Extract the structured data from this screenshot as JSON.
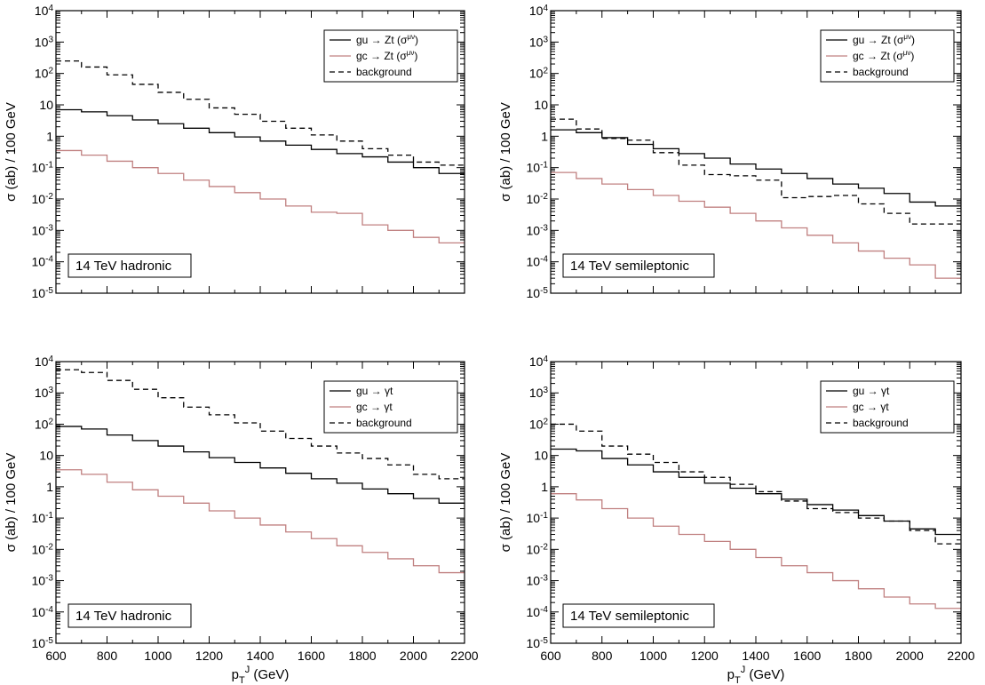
{
  "chart_data": [
    {
      "type": "line",
      "step": true,
      "ylabel": "σ (ab) / 100 GeV",
      "xlabel": "",
      "xlim": [
        600,
        2200
      ],
      "ylim": [
        1e-05,
        10000.0
      ],
      "yscale": "log",
      "x_ticks": [
        "600",
        "800",
        "1000",
        "1200",
        "1400",
        "1600",
        "1800",
        "2000",
        "2200"
      ],
      "x_tick_labels_shown": false,
      "y_ticks": [
        {
          "base": "10",
          "exp": "-5"
        },
        {
          "base": "10",
          "exp": "-4"
        },
        {
          "base": "10",
          "exp": "-3"
        },
        {
          "base": "10",
          "exp": "-2"
        },
        {
          "base": "10",
          "exp": "-1"
        },
        {
          "base": "1",
          "exp": ""
        },
        {
          "base": "10",
          "exp": ""
        },
        {
          "base": "10",
          "exp": "2"
        },
        {
          "base": "10",
          "exp": "3"
        },
        {
          "base": "10",
          "exp": "4"
        }
      ],
      "annotation": "14 TeV hadronic",
      "legend_position": "top-right",
      "bin_edges": [
        600,
        700,
        800,
        900,
        1000,
        1100,
        1200,
        1300,
        1400,
        1500,
        1600,
        1700,
        1800,
        1900,
        2000,
        2100,
        2200
      ],
      "series": [
        {
          "name": "gu → Zt (σ",
          "name_sup": "μν",
          "name_tail": ")",
          "color": "#000000",
          "dash": "solid",
          "values": [
            7,
            6,
            4.5,
            3.3,
            2.5,
            1.8,
            1.3,
            0.95,
            0.7,
            0.52,
            0.38,
            0.28,
            0.22,
            0.15,
            0.1,
            0.065
          ]
        },
        {
          "name": "gc → Zt (σ",
          "name_sup": "μν",
          "name_tail": ")",
          "color": "#c08080",
          "dash": "solid",
          "values": [
            0.35,
            0.25,
            0.16,
            0.1,
            0.065,
            0.04,
            0.025,
            0.016,
            0.01,
            0.006,
            0.0038,
            0.0035,
            0.0015,
            0.001,
            0.0006,
            0.0004
          ]
        },
        {
          "name": "background",
          "name_sup": "",
          "name_tail": "",
          "color": "#000000",
          "dash": "dashed",
          "values": [
            250,
            160,
            90,
            45,
            25,
            15,
            8,
            5,
            3,
            1.8,
            1.1,
            0.7,
            0.4,
            0.25,
            0.15,
            0.12
          ]
        }
      ]
    },
    {
      "type": "line",
      "step": true,
      "ylabel": "σ (ab) / 100 GeV",
      "xlabel": "",
      "xlim": [
        600,
        2200
      ],
      "ylim": [
        1e-05,
        10000.0
      ],
      "yscale": "log",
      "x_ticks": [
        "600",
        "800",
        "1000",
        "1200",
        "1400",
        "1600",
        "1800",
        "2000",
        "2200"
      ],
      "x_tick_labels_shown": false,
      "y_ticks": [
        {
          "base": "10",
          "exp": "-5"
        },
        {
          "base": "10",
          "exp": "-4"
        },
        {
          "base": "10",
          "exp": "-3"
        },
        {
          "base": "10",
          "exp": "-2"
        },
        {
          "base": "10",
          "exp": "-1"
        },
        {
          "base": "1",
          "exp": ""
        },
        {
          "base": "10",
          "exp": ""
        },
        {
          "base": "10",
          "exp": "2"
        },
        {
          "base": "10",
          "exp": "3"
        },
        {
          "base": "10",
          "exp": "4"
        }
      ],
      "annotation": "14 TeV semileptonic",
      "legend_position": "top-right",
      "bin_edges": [
        600,
        700,
        800,
        900,
        1000,
        1100,
        1200,
        1300,
        1400,
        1500,
        1600,
        1700,
        1800,
        1900,
        2000,
        2100,
        2200
      ],
      "series": [
        {
          "name": "gu → Zt (σ",
          "name_sup": "μν",
          "name_tail": ")",
          "color": "#000000",
          "dash": "solid",
          "values": [
            1.6,
            1.3,
            0.9,
            0.55,
            0.4,
            0.28,
            0.2,
            0.13,
            0.09,
            0.065,
            0.045,
            0.03,
            0.022,
            0.015,
            0.008,
            0.006
          ]
        },
        {
          "name": "gc → Zt (σ",
          "name_sup": "μν",
          "name_tail": ")",
          "color": "#c08080",
          "dash": "solid",
          "values": [
            0.07,
            0.045,
            0.03,
            0.02,
            0.013,
            0.0085,
            0.0055,
            0.0035,
            0.002,
            0.0012,
            0.0007,
            0.0004,
            0.00022,
            0.00013,
            8e-05,
            3e-05
          ]
        },
        {
          "name": "background",
          "name_sup": "",
          "name_tail": "",
          "color": "#000000",
          "dash": "dashed",
          "values": [
            3.5,
            1.7,
            0.85,
            0.75,
            0.3,
            0.12,
            0.06,
            0.055,
            0.04,
            0.011,
            0.012,
            0.013,
            0.007,
            0.0035,
            0.0016,
            0.0016
          ]
        }
      ]
    },
    {
      "type": "line",
      "step": true,
      "ylabel": "σ (ab) / 100 GeV",
      "xlabel": "p_T^J (GeV)",
      "xlim": [
        600,
        2200
      ],
      "ylim": [
        1e-05,
        10000.0
      ],
      "yscale": "log",
      "x_ticks": [
        "600",
        "800",
        "1000",
        "1200",
        "1400",
        "1600",
        "1800",
        "2000",
        "2200"
      ],
      "x_tick_labels_shown": true,
      "y_ticks": [
        {
          "base": "10",
          "exp": "-5"
        },
        {
          "base": "10",
          "exp": "-4"
        },
        {
          "base": "10",
          "exp": "-3"
        },
        {
          "base": "10",
          "exp": "-2"
        },
        {
          "base": "10",
          "exp": "-1"
        },
        {
          "base": "1",
          "exp": ""
        },
        {
          "base": "10",
          "exp": ""
        },
        {
          "base": "10",
          "exp": "2"
        },
        {
          "base": "10",
          "exp": "3"
        },
        {
          "base": "10",
          "exp": "4"
        }
      ],
      "annotation": "14 TeV hadronic",
      "legend_position": "top-right",
      "bin_edges": [
        600,
        700,
        800,
        900,
        1000,
        1100,
        1200,
        1300,
        1400,
        1500,
        1600,
        1700,
        1800,
        1900,
        2000,
        2100,
        2200
      ],
      "series": [
        {
          "name": "gu → γt",
          "name_sup": "",
          "name_tail": "",
          "color": "#000000",
          "dash": "solid",
          "values": [
            85,
            70,
            45,
            30,
            20,
            13,
            8.5,
            6,
            4,
            2.7,
            1.8,
            1.3,
            0.85,
            0.6,
            0.42,
            0.3
          ]
        },
        {
          "name": "gc → γt",
          "name_sup": "",
          "name_tail": "",
          "color": "#c08080",
          "dash": "solid",
          "values": [
            3.5,
            2.5,
            1.4,
            0.8,
            0.5,
            0.3,
            0.17,
            0.1,
            0.06,
            0.036,
            0.022,
            0.013,
            0.008,
            0.005,
            0.003,
            0.0018
          ]
        },
        {
          "name": "background",
          "name_sup": "",
          "name_tail": "",
          "color": "#000000",
          "dash": "dashed",
          "values": [
            5500,
            4500,
            2500,
            1300,
            700,
            350,
            200,
            110,
            60,
            35,
            20,
            12,
            8,
            5,
            2.5,
            1.8
          ]
        }
      ]
    },
    {
      "type": "line",
      "step": true,
      "ylabel": "σ (ab) / 100 GeV",
      "xlabel": "p_T^J (GeV)",
      "xlim": [
        600,
        2200
      ],
      "ylim": [
        1e-05,
        10000.0
      ],
      "yscale": "log",
      "x_ticks": [
        "600",
        "800",
        "1000",
        "1200",
        "1400",
        "1600",
        "1800",
        "2000",
        "2200"
      ],
      "x_tick_labels_shown": true,
      "y_ticks": [
        {
          "base": "10",
          "exp": "-5"
        },
        {
          "base": "10",
          "exp": "-4"
        },
        {
          "base": "10",
          "exp": "-3"
        },
        {
          "base": "10",
          "exp": "-2"
        },
        {
          "base": "10",
          "exp": "-1"
        },
        {
          "base": "1",
          "exp": ""
        },
        {
          "base": "10",
          "exp": ""
        },
        {
          "base": "10",
          "exp": "2"
        },
        {
          "base": "10",
          "exp": "3"
        },
        {
          "base": "10",
          "exp": "4"
        }
      ],
      "annotation": "14 TeV semileptonic",
      "legend_position": "top-right",
      "bin_edges": [
        600,
        700,
        800,
        900,
        1000,
        1100,
        1200,
        1300,
        1400,
        1500,
        1600,
        1700,
        1800,
        1900,
        2000,
        2100,
        2200
      ],
      "series": [
        {
          "name": "gu → γt",
          "name_sup": "",
          "name_tail": "",
          "color": "#000000",
          "dash": "solid",
          "values": [
            16,
            14,
            8,
            5,
            3,
            2,
            1.3,
            0.9,
            0.6,
            0.4,
            0.27,
            0.18,
            0.12,
            0.08,
            0.045,
            0.03
          ]
        },
        {
          "name": "gc → γt",
          "name_sup": "",
          "name_tail": "",
          "color": "#c08080",
          "dash": "solid",
          "values": [
            0.6,
            0.38,
            0.2,
            0.1,
            0.055,
            0.03,
            0.018,
            0.01,
            0.0055,
            0.003,
            0.0018,
            0.001,
            0.00055,
            0.0003,
            0.00018,
            0.00013
          ]
        },
        {
          "name": "background",
          "name_sup": "",
          "name_tail": "",
          "color": "#000000",
          "dash": "dashed",
          "values": [
            100,
            60,
            20,
            11,
            6,
            3,
            2,
            1.2,
            0.7,
            0.35,
            0.2,
            0.15,
            0.1,
            0.08,
            0.04,
            0.015
          ]
        }
      ]
    }
  ]
}
